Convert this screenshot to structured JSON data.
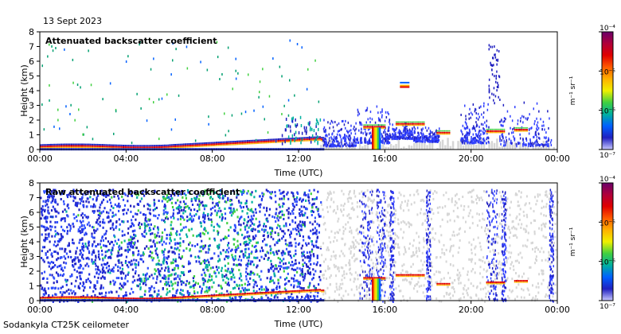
{
  "date_label": "13 Sept 2023",
  "footer_label": "Sodankyla CT25K ceilometer",
  "colorbar": {
    "unit_label": "m⁻¹ sr⁻¹",
    "tick_labels": [
      "10⁻⁴",
      "10⁻⁵",
      "10⁻⁶",
      "10⁻⁷"
    ],
    "colors": [
      "#6a006a",
      "#b0003a",
      "#e00000",
      "#ff5a00",
      "#ffb000",
      "#f0f000",
      "#40d040",
      "#00b0a0",
      "#0060ff",
      "#2020c0",
      "#c8c8ff"
    ]
  },
  "chart_data": [
    {
      "type": "heatmap",
      "title": "Attenuated backscatter coefficient",
      "xlabel": "Time (UTC)",
      "ylabel": "Height (km)",
      "xlim": [
        "00:00",
        "24:00"
      ],
      "ylim": [
        0,
        8
      ],
      "x_tick_labels": [
        "00:00",
        "04:00",
        "08:00",
        "12:00",
        "16:00",
        "20:00",
        "00:00"
      ],
      "y_tick_labels": [
        "0",
        "1",
        "2",
        "3",
        "4",
        "5",
        "6",
        "7",
        "8"
      ],
      "colorbar_range": [
        "1e-7",
        "1e-4"
      ],
      "colorscale": "log"
    },
    {
      "type": "heatmap",
      "title": "Raw attenuated backscatter coefficient",
      "xlabel": "Time (UTC)",
      "ylabel": "Height (km)",
      "xlim": [
        "00:00",
        "24:00"
      ],
      "ylim": [
        0,
        8
      ],
      "x_tick_labels": [
        "00:00",
        "04:00",
        "08:00",
        "12:00",
        "16:00",
        "20:00",
        "00:00"
      ],
      "y_tick_labels": [
        "0",
        "1",
        "2",
        "3",
        "4",
        "5",
        "6",
        "7",
        "8"
      ],
      "colorbar_range": [
        "1e-7",
        "1e-4"
      ],
      "colorscale": "log"
    }
  ]
}
